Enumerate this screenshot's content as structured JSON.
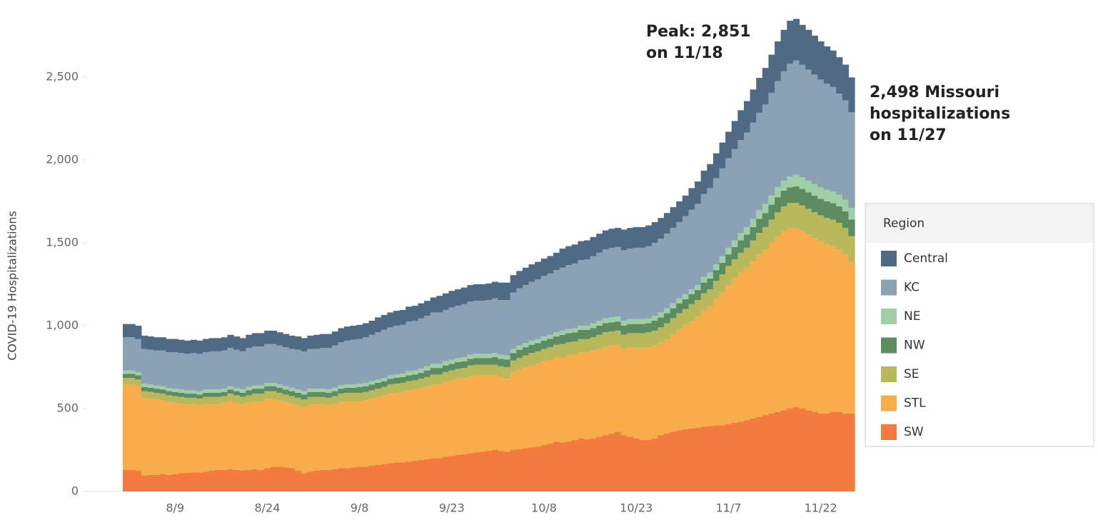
{
  "chart_data": {
    "type": "stacked-step-area",
    "y_label": "COVID-19 Hospitalizations",
    "legend_title": "Region",
    "legend": "right",
    "annotations": [
      [
        "Peak: 2,851",
        "on 11/18"
      ],
      [
        "2,498 Missouri",
        "hospitalizations",
        "on 11/27"
      ]
    ],
    "categories": [
      null,
      null,
      null,
      null,
      null,
      null,
      null,
      null,
      "8/9",
      null,
      null,
      null,
      null,
      null,
      null,
      null,
      null,
      null,
      null,
      null,
      null,
      null,
      null,
      "8/24",
      null,
      null,
      null,
      null,
      null,
      null,
      null,
      null,
      null,
      null,
      null,
      null,
      null,
      null,
      "9/8",
      null,
      null,
      null,
      null,
      null,
      null,
      null,
      null,
      null,
      null,
      null,
      null,
      null,
      null,
      "9/23",
      null,
      null,
      null,
      null,
      null,
      null,
      null,
      null,
      null,
      null,
      null,
      null,
      null,
      null,
      "10/8",
      null,
      null,
      null,
      null,
      null,
      null,
      null,
      null,
      null,
      null,
      null,
      null,
      null,
      null,
      "10/23",
      null,
      null,
      null,
      null,
      null,
      null,
      null,
      null,
      null,
      null,
      null,
      null,
      null,
      null,
      "11/7",
      null,
      null,
      null,
      null,
      null,
      null,
      null,
      null,
      null,
      null,
      null,
      null,
      null,
      null,
      "11/22",
      null,
      null,
      null,
      null,
      null
    ],
    "ylim": [
      0,
      2965
    ],
    "yticks": [
      0,
      500,
      {
        "value": 1000,
        "label": "1,000"
      },
      {
        "value": 1500,
        "label": "1,500"
      },
      {
        "value": 2000,
        "label": "2,000"
      },
      {
        "value": 2500,
        "label": "2,500"
      }
    ],
    "series": [
      {
        "name": "Central",
        "color": "#4e6a85",
        "values": [
          80,
          80,
          80,
          80,
          80,
          80,
          80,
          80,
          80,
          80,
          80,
          80,
          80,
          80,
          80,
          80,
          80,
          80,
          80,
          80,
          80,
          80,
          80,
          80,
          80,
          80,
          80,
          80,
          80,
          80,
          80,
          85,
          85,
          85,
          85,
          85,
          85,
          85,
          85,
          85,
          85,
          90,
          90,
          90,
          90,
          90,
          90,
          90,
          90,
          90,
          90,
          100,
          100,
          100,
          100,
          100,
          100,
          100,
          100,
          100,
          100,
          105,
          105,
          105,
          105,
          105,
          105,
          105,
          105,
          105,
          105,
          115,
          115,
          115,
          115,
          115,
          115,
          115,
          115,
          115,
          115,
          125,
          125,
          125,
          125,
          125,
          125,
          125,
          125,
          125,
          125,
          125,
          130,
          135,
          140,
          145,
          150,
          155,
          160,
          170,
          180,
          190,
          200,
          210,
          220,
          230,
          240,
          250,
          260,
          250,
          240,
          240,
          235,
          230,
          225,
          220,
          220,
          215,
          210
        ]
      },
      {
        "name": "KC",
        "color": "#8ba2b5",
        "values": [
          200,
          200,
          200,
          210,
          210,
          210,
          215,
          215,
          220,
          220,
          220,
          225,
          225,
          225,
          230,
          230,
          230,
          230,
          230,
          230,
          235,
          235,
          235,
          235,
          235,
          235,
          235,
          235,
          240,
          240,
          240,
          240,
          245,
          250,
          255,
          260,
          265,
          270,
          270,
          275,
          280,
          285,
          290,
          290,
          295,
          295,
          300,
          300,
          305,
          305,
          310,
          310,
          310,
          315,
          315,
          320,
          320,
          320,
          320,
          325,
          330,
          330,
          335,
          340,
          345,
          350,
          355,
          360,
          365,
          370,
          375,
          380,
          385,
          390,
          395,
          400,
          405,
          410,
          415,
          420,
          420,
          425,
          425,
          430,
          430,
          435,
          440,
          445,
          450,
          455,
          460,
          470,
          480,
          490,
          500,
          510,
          520,
          530,
          540,
          550,
          560,
          570,
          580,
          590,
          600,
          620,
          640,
          660,
          680,
          691,
          680,
          670,
          660,
          650,
          640,
          630,
          610,
          600,
          578
        ]
      },
      {
        "name": "NE",
        "color": "#9fcfa4",
        "values": [
          20,
          20,
          20,
          20,
          20,
          20,
          20,
          20,
          20,
          20,
          20,
          20,
          20,
          20,
          20,
          20,
          20,
          20,
          20,
          20,
          20,
          20,
          20,
          20,
          20,
          20,
          20,
          20,
          20,
          20,
          20,
          20,
          20,
          20,
          20,
          20,
          20,
          20,
          20,
          20,
          20,
          20,
          20,
          20,
          20,
          20,
          25,
          25,
          25,
          25,
          25,
          25,
          25,
          25,
          25,
          25,
          25,
          25,
          25,
          25,
          25,
          25,
          25,
          25,
          25,
          25,
          25,
          25,
          25,
          25,
          25,
          25,
          25,
          25,
          25,
          25,
          30,
          30,
          30,
          30,
          30,
          30,
          30,
          30,
          30,
          30,
          30,
          30,
          30,
          30,
          30,
          30,
          30,
          30,
          35,
          35,
          35,
          40,
          40,
          40,
          45,
          45,
          50,
          50,
          55,
          55,
          60,
          60,
          65,
          70,
          70,
          70,
          70,
          70,
          70,
          70,
          70,
          70,
          70
        ]
      },
      {
        "name": "NW",
        "color": "#5e8c61",
        "values": [
          25,
          25,
          25,
          25,
          25,
          25,
          25,
          25,
          25,
          25,
          25,
          25,
          25,
          25,
          25,
          25,
          25,
          25,
          25,
          25,
          30,
          30,
          30,
          30,
          30,
          30,
          30,
          30,
          30,
          30,
          30,
          30,
          30,
          30,
          30,
          30,
          30,
          30,
          35,
          35,
          35,
          35,
          35,
          35,
          35,
          35,
          35,
          35,
          35,
          40,
          40,
          40,
          40,
          40,
          40,
          40,
          40,
          40,
          40,
          40,
          45,
          45,
          45,
          45,
          50,
          50,
          50,
          50,
          50,
          50,
          50,
          55,
          55,
          55,
          55,
          55,
          55,
          55,
          55,
          55,
          55,
          55,
          55,
          55,
          55,
          55,
          60,
          60,
          60,
          60,
          60,
          60,
          60,
          60,
          65,
          65,
          65,
          70,
          70,
          75,
          75,
          80,
          80,
          85,
          85,
          90,
          90,
          95,
          95,
          100,
          100,
          100,
          100,
          100,
          100,
          100,
          100,
          100,
          100
        ]
      },
      {
        "name": "SE",
        "color": "#b9b85a",
        "values": [
          40,
          40,
          40,
          40,
          40,
          40,
          40,
          40,
          40,
          40,
          40,
          40,
          40,
          40,
          40,
          40,
          40,
          45,
          45,
          45,
          45,
          45,
          45,
          45,
          45,
          45,
          45,
          45,
          45,
          45,
          45,
          45,
          45,
          45,
          45,
          50,
          50,
          50,
          50,
          50,
          50,
          50,
          50,
          55,
          55,
          55,
          55,
          55,
          55,
          55,
          60,
          60,
          60,
          60,
          60,
          60,
          65,
          65,
          65,
          65,
          65,
          65,
          70,
          70,
          70,
          70,
          75,
          75,
          75,
          75,
          75,
          80,
          80,
          80,
          80,
          80,
          80,
          85,
          85,
          85,
          85,
          85,
          85,
          90,
          90,
          90,
          90,
          90,
          95,
          95,
          95,
          95,
          100,
          100,
          105,
          105,
          110,
          110,
          115,
          115,
          120,
          120,
          125,
          130,
          135,
          140,
          145,
          150,
          150,
          150,
          155,
          155,
          155,
          155,
          160,
          160,
          160,
          160,
          160
        ]
      },
      {
        "name": "STL",
        "color": "#f8ac4a",
        "values": [
          515,
          515,
          510,
          470,
          460,
          455,
          445,
          440,
          430,
          420,
          415,
          410,
          405,
          410,
          405,
          400,
          405,
          410,
          405,
          400,
          405,
          410,
          415,
          420,
          410,
          400,
          395,
          390,
          395,
          400,
          405,
          400,
          395,
          390,
          395,
          400,
          405,
          400,
          395,
          400,
          405,
          410,
          415,
          420,
          420,
          425,
          430,
          430,
          435,
          440,
          445,
          445,
          450,
          455,
          460,
          460,
          465,
          465,
          460,
          455,
          450,
          445,
          440,
          470,
          480,
          490,
          495,
          500,
          505,
          505,
          510,
          515,
          520,
          515,
          520,
          525,
          530,
          530,
          535,
          530,
          525,
          520,
          540,
          545,
          555,
          560,
          560,
          560,
          570,
          590,
          610,
          630,
          650,
          670,
          700,
          720,
          760,
          800,
          840,
          870,
          900,
          920,
          950,
          980,
          1000,
          1030,
          1060,
          1080,
          1090,
          1080,
          1070,
          1060,
          1050,
          1040,
          1020,
          1000,
          980,
          960,
          910
        ]
      },
      {
        "name": "SW",
        "color": "#f47b40",
        "values": [
          130,
          130,
          125,
          95,
          100,
          100,
          105,
          100,
          105,
          110,
          110,
          115,
          115,
          120,
          125,
          130,
          130,
          135,
          130,
          125,
          130,
          135,
          130,
          140,
          150,
          150,
          145,
          140,
          125,
          110,
          120,
          125,
          130,
          130,
          135,
          140,
          140,
          145,
          150,
          150,
          155,
          160,
          165,
          170,
          175,
          175,
          180,
          185,
          190,
          195,
          200,
          200,
          210,
          215,
          220,
          225,
          230,
          235,
          240,
          245,
          250,
          245,
          240,
          250,
          255,
          260,
          265,
          270,
          280,
          290,
          300,
          295,
          300,
          310,
          320,
          315,
          320,
          330,
          340,
          350,
          360,
          340,
          330,
          320,
          310,
          310,
          320,
          340,
          350,
          360,
          370,
          375,
          380,
          385,
          390,
          395,
          400,
          400,
          405,
          415,
          420,
          430,
          440,
          450,
          460,
          470,
          480,
          490,
          500,
          510,
          500,
          490,
          480,
          470,
          470,
          480,
          480,
          470,
          470
        ]
      }
    ]
  }
}
